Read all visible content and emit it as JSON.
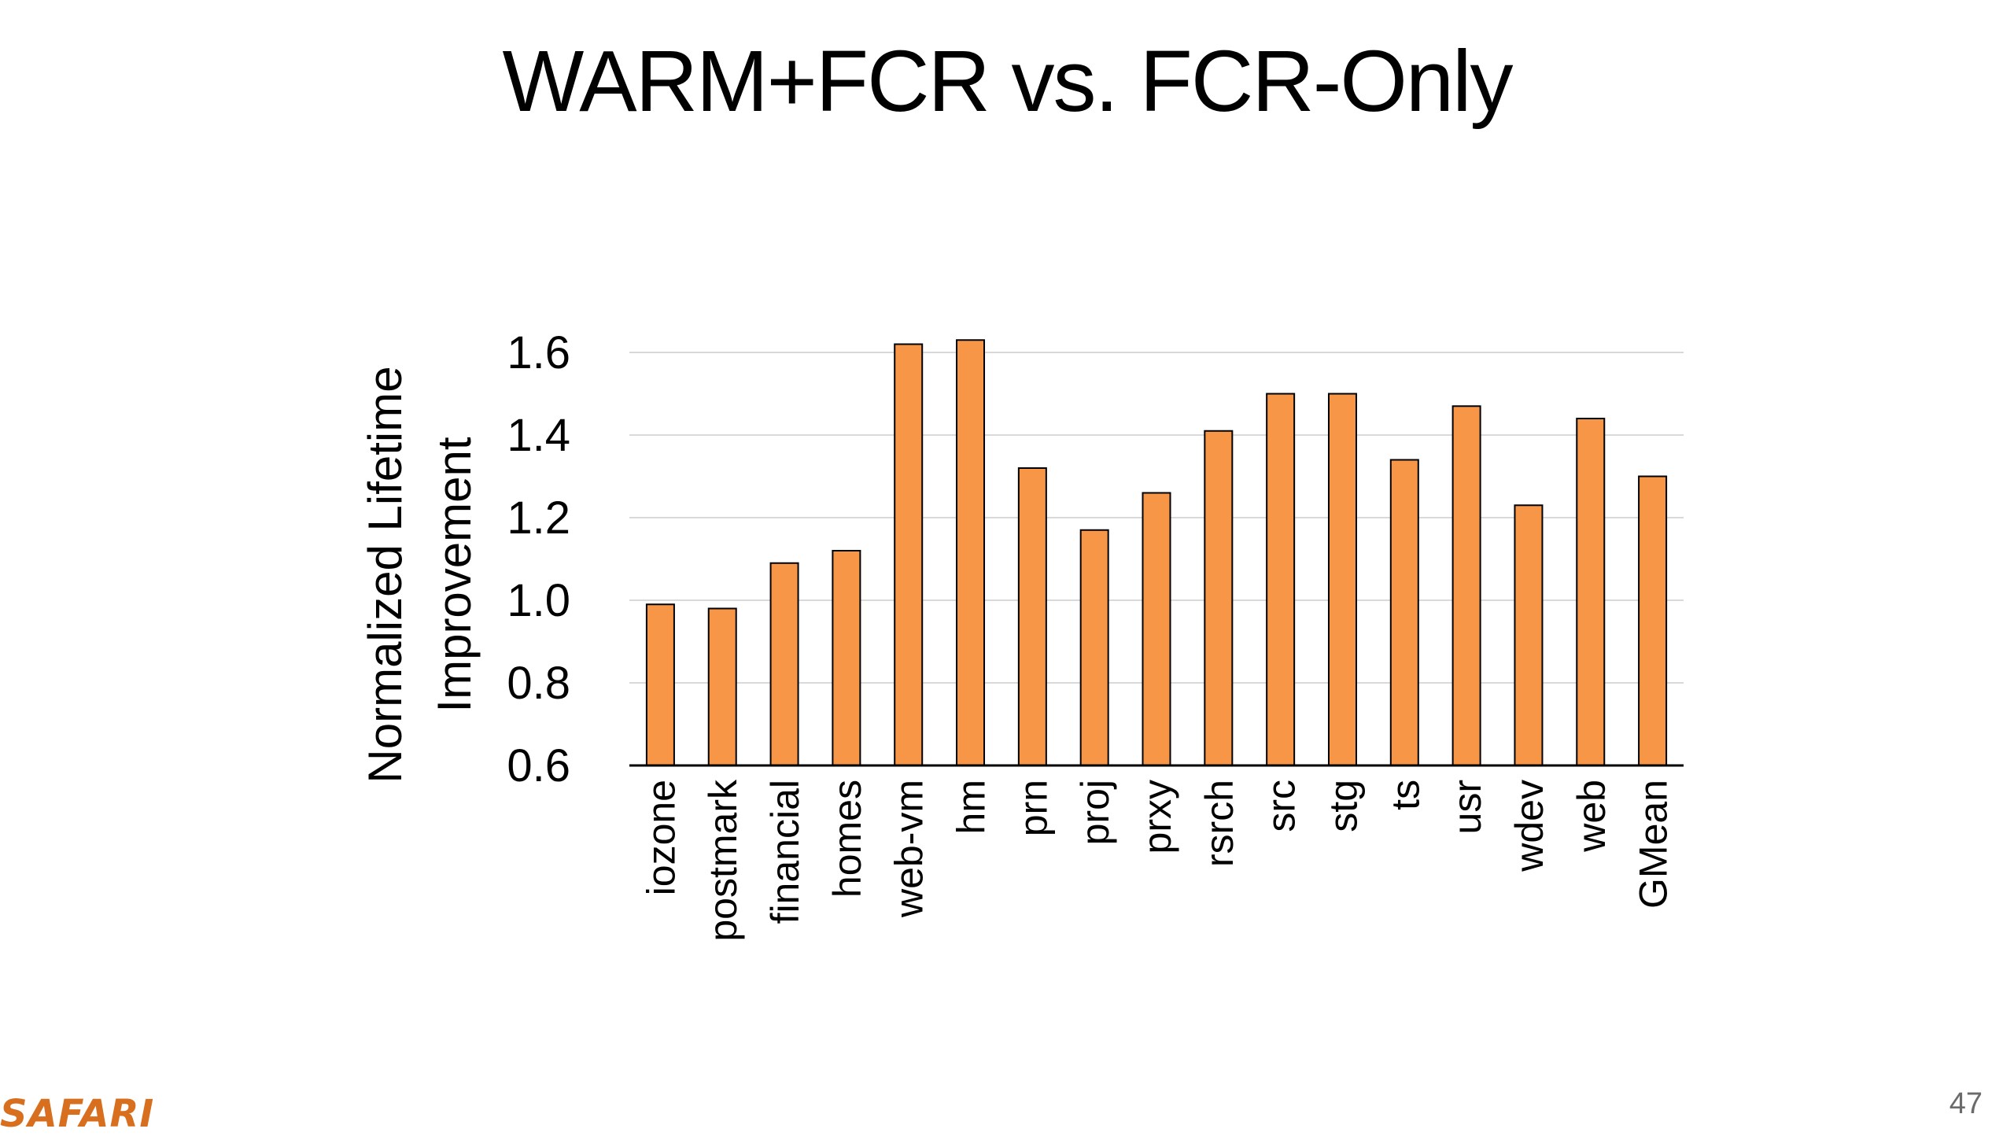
{
  "slide": {
    "title": "WARM+FCR vs. FCR-Only",
    "logo_text": "SAFARI",
    "page_number": "47"
  },
  "chart_data": {
    "type": "bar",
    "title": "",
    "xlabel": "",
    "ylabel_lines": [
      "Normalized Lifetime",
      "Improvement"
    ],
    "ylim": [
      0.6,
      1.6
    ],
    "yticks": [
      "0.6",
      "0.8",
      "1.0",
      "1.2",
      "1.4",
      "1.6"
    ],
    "grid": true,
    "legend": "none",
    "categories": [
      "iozone",
      "postmark",
      "financial",
      "homes",
      "web-vm",
      "hm",
      "prn",
      "proj",
      "prxy",
      "rsrch",
      "src",
      "stg",
      "ts",
      "usr",
      "wdev",
      "web",
      "GMean"
    ],
    "values": [
      0.99,
      0.98,
      1.09,
      1.12,
      1.62,
      1.63,
      1.32,
      1.17,
      1.26,
      1.41,
      1.5,
      1.5,
      1.34,
      1.47,
      1.23,
      1.44,
      1.3
    ],
    "bar_color": "#f79646",
    "bar_outline": "#000000",
    "grid_color": "#d9d9d9"
  }
}
